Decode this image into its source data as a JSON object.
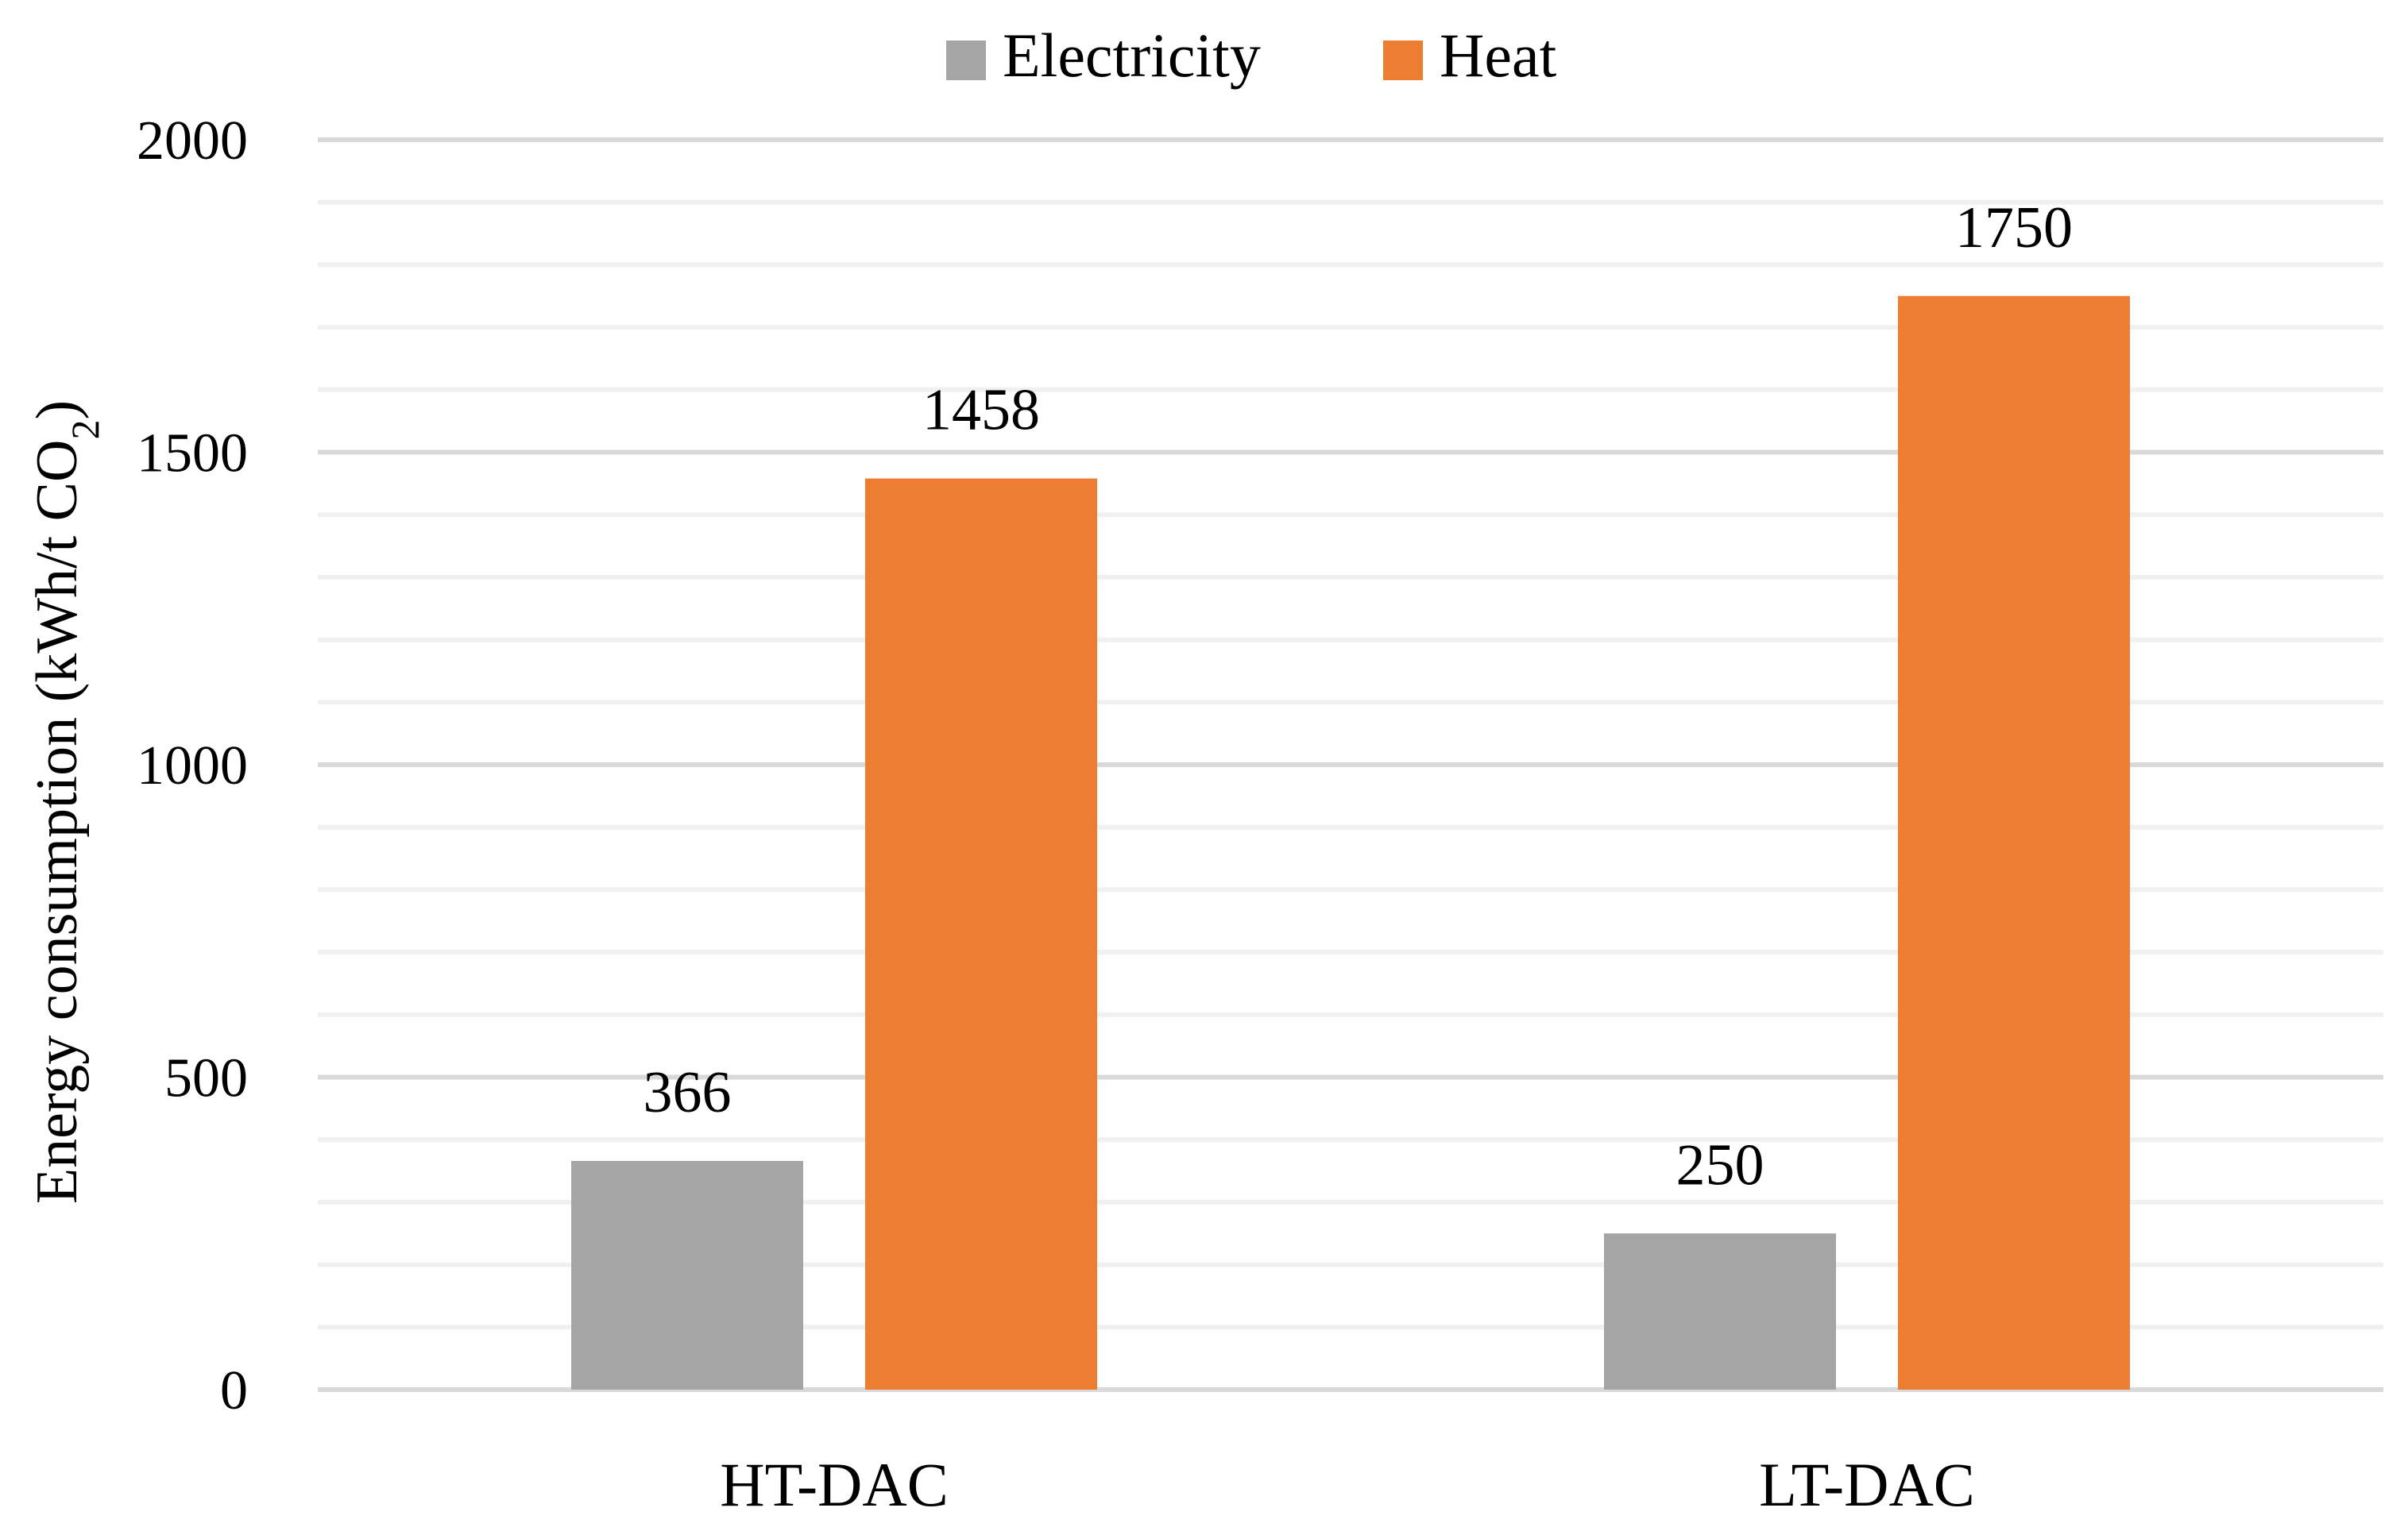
{
  "chart_data": {
    "type": "bar",
    "title": "",
    "xlabel": "",
    "ylabel": "Energy consumption (kWh/t CO",
    "ylabel_subscript": "2",
    "ylabel_close": ")",
    "categories": [
      "HT-DAC",
      "LT-DAC"
    ],
    "series": [
      {
        "name": "Electricity",
        "values": [
          366,
          250
        ],
        "color": "#A5A5A5"
      },
      {
        "name": "Heat",
        "values": [
          1458,
          1750
        ],
        "color": "#ED7D31"
      }
    ],
    "ylim": [
      0,
      2000
    ],
    "major_ticks": [
      0,
      500,
      1000,
      1500,
      2000
    ],
    "minor_step": 100,
    "legend": "top-center",
    "data_labels": true,
    "grid": true
  }
}
